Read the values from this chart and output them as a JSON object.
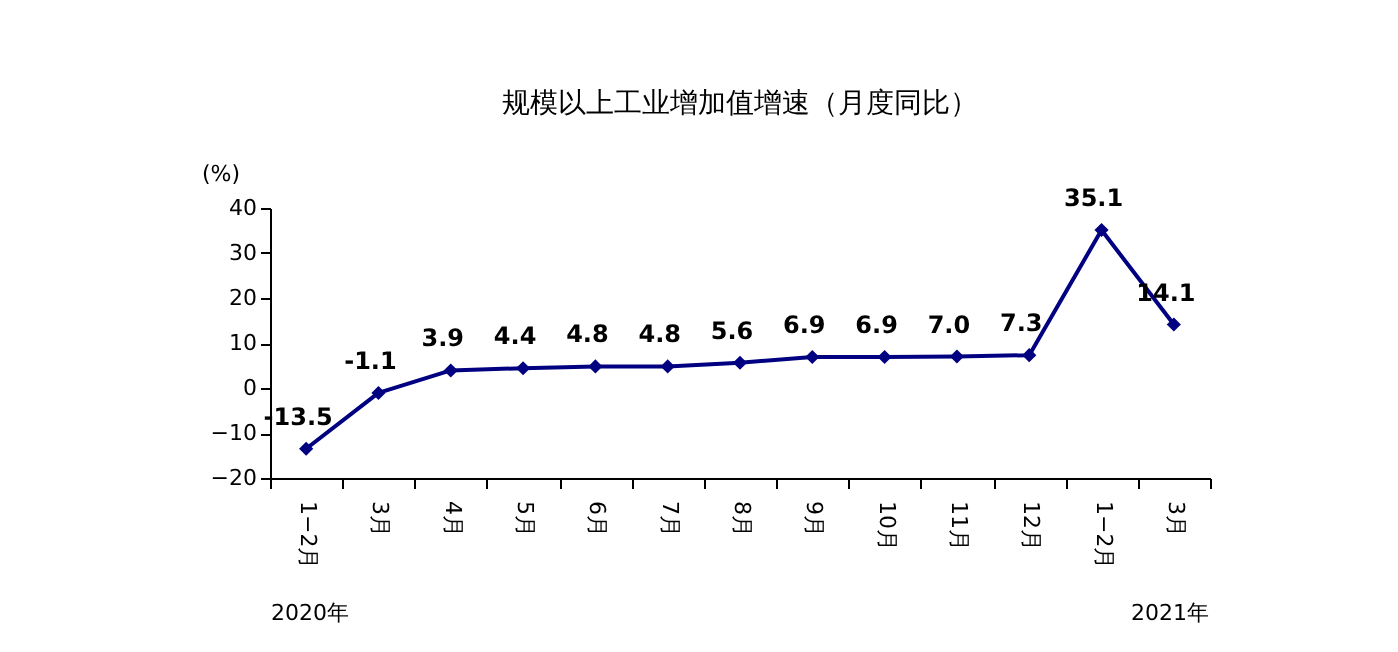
{
  "chart_data": {
    "type": "line",
    "title": "规模以上工业增加值增速（月度同比）",
    "ylabel": "(%)",
    "categories": [
      "1−2月",
      "3月",
      "4月",
      "5月",
      "6月",
      "7月",
      "8月",
      "9月",
      "10月",
      "11月",
      "12月",
      "1−2月",
      "3月"
    ],
    "series": [
      {
        "color": "#000080",
        "values": [
          -13.5,
          -1.1,
          3.9,
          4.4,
          4.8,
          4.8,
          5.6,
          6.9,
          6.9,
          7.0,
          7.3,
          35.1,
          14.1
        ]
      }
    ],
    "value_labels": [
      "-13.5",
      "-1.1",
      "3.9",
      "4.4",
      "4.8",
      "4.8",
      "5.6",
      "6.9",
      "6.9",
      "7.0",
      "7.3",
      "35.1",
      "14.1"
    ],
    "ylim": [
      -20,
      40
    ],
    "yticks": [
      -20,
      -10,
      0,
      10,
      20,
      30,
      40
    ],
    "grid": false,
    "marker": "diamond",
    "line_style": "solid",
    "annotations": [
      "2020年",
      "2021年"
    ]
  }
}
